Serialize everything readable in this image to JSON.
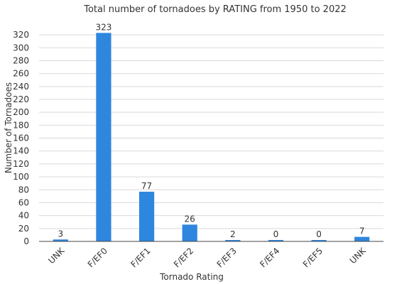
{
  "chart_data": {
    "type": "bar",
    "title": "Total number of tornadoes by RATING from 1950 to 2022",
    "xlabel": "Tornado Rating",
    "ylabel": "Number of Tornadoes",
    "categories": [
      "UNK",
      "F/EF0",
      "F/EF1",
      "F/EF2",
      "F/EF3",
      "F/EF4",
      "F/EF5",
      "UNK"
    ],
    "values": [
      3,
      323,
      77,
      26,
      2,
      0,
      0,
      7
    ],
    "ylim": [
      0,
      330
    ],
    "yticks": [
      0,
      20,
      40,
      60,
      80,
      100,
      120,
      140,
      160,
      180,
      200,
      220,
      240,
      260,
      280,
      300,
      320
    ],
    "grid": true,
    "legend": "none",
    "bar_color": "#2e86de"
  }
}
